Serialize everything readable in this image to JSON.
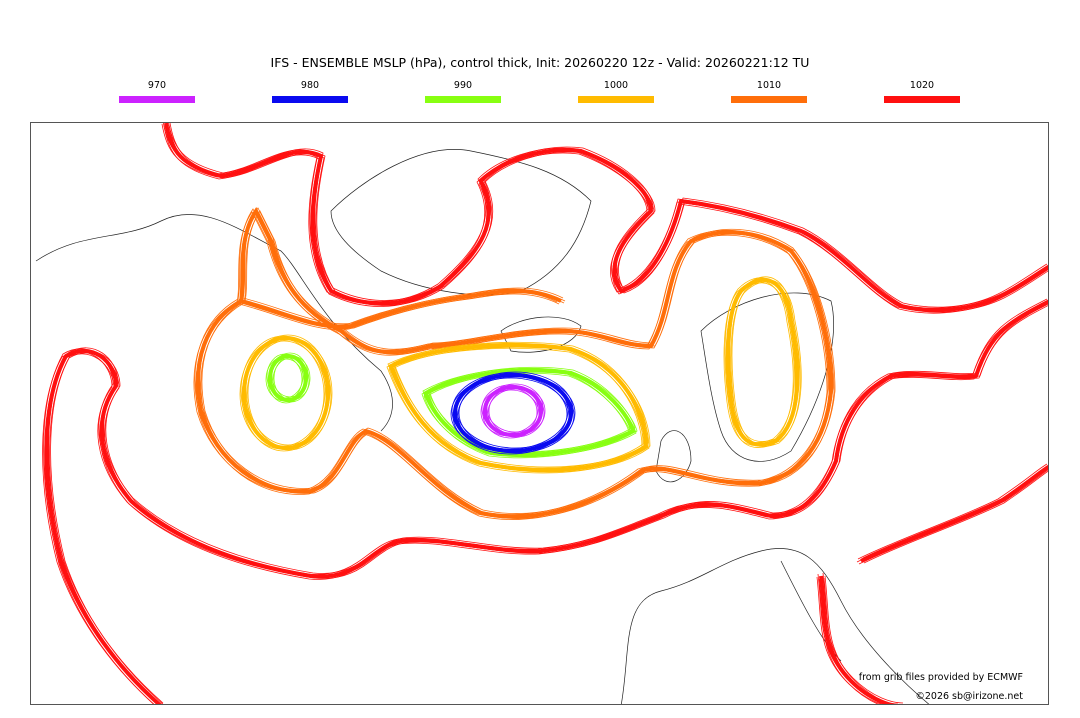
{
  "title": "IFS - ENSEMBLE MSLP (hPa), control thick, Init: 20260220 12z - Valid: 20260221:12 TU",
  "legend": [
    {
      "label": "970",
      "color": "#cc22ff"
    },
    {
      "label": "980",
      "color": "#0a0af0"
    },
    {
      "label": "990",
      "color": "#88ff11"
    },
    {
      "label": "1000",
      "color": "#ffbb00"
    },
    {
      "label": "1010",
      "color": "#ff6e0a"
    },
    {
      "label": "1020",
      "color": "#ff1010"
    }
  ],
  "credits": {
    "source": "from grib files provided by ECMWF",
    "copyright": "©2026 sb@irizone.net"
  }
}
